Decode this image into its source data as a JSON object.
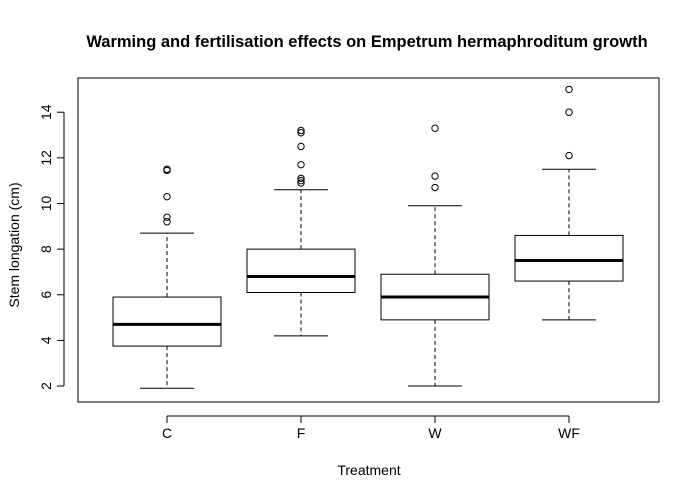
{
  "chart_data": {
    "type": "boxplot",
    "title": "Warming and fertilisation effects on Empetrum hermaphroditum growth",
    "xlabel": "Treatment",
    "ylabel": "Stem longation (cm)",
    "ylim": [
      1.3,
      15.5
    ],
    "yticks": [
      2,
      4,
      6,
      8,
      10,
      12,
      14
    ],
    "grid": false,
    "categories": [
      "C",
      "F",
      "W",
      "WF"
    ],
    "boxes": [
      {
        "category": "C",
        "whisker_low": 1.9,
        "q1": 3.75,
        "median": 4.7,
        "q3": 5.9,
        "whisker_high": 8.7,
        "outliers": [
          9.2,
          9.4,
          10.3,
          11.45,
          11.5
        ]
      },
      {
        "category": "F",
        "whisker_low": 4.2,
        "q1": 6.1,
        "median": 6.8,
        "q3": 8.0,
        "whisker_high": 10.6,
        "outliers": [
          10.9,
          11.0,
          11.1,
          11.7,
          12.5,
          13.1,
          13.2
        ]
      },
      {
        "category": "W",
        "whisker_low": 2.0,
        "q1": 4.9,
        "median": 5.9,
        "q3": 6.9,
        "whisker_high": 9.9,
        "outliers": [
          10.7,
          11.2,
          13.3
        ]
      },
      {
        "category": "WF",
        "whisker_low": 4.9,
        "q1": 6.6,
        "median": 7.5,
        "q3": 8.6,
        "whisker_high": 11.5,
        "outliers": [
          12.1,
          14.0,
          15.0
        ]
      }
    ]
  }
}
